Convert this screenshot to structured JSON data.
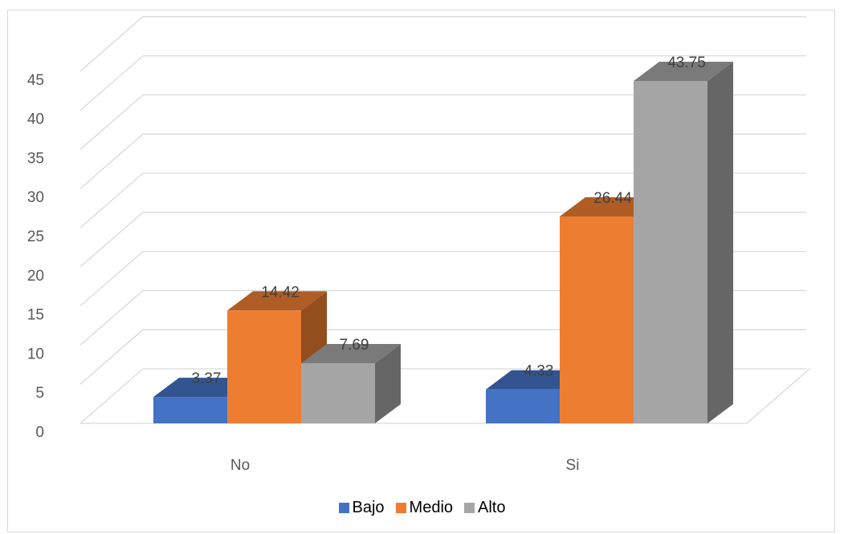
{
  "chart_data": {
    "type": "bar",
    "categories": [
      "No",
      "Si"
    ],
    "series": [
      {
        "name": "Bajo",
        "values": [
          3.37,
          4.33
        ],
        "color": "#4472c4"
      },
      {
        "name": "Medio",
        "values": [
          14.42,
          26.44
        ],
        "color": "#ed7d31"
      },
      {
        "name": "Alto",
        "values": [
          7.69,
          43.75
        ],
        "color": "#a5a5a5"
      }
    ],
    "title": "",
    "xlabel": "",
    "ylabel": "",
    "ylim": [
      0,
      45
    ],
    "yticks": [
      "0",
      "5",
      "10",
      "15",
      "20",
      "25",
      "30",
      "35",
      "40",
      "45"
    ],
    "grid": true,
    "three_d": true,
    "legend_position": "bottom"
  }
}
